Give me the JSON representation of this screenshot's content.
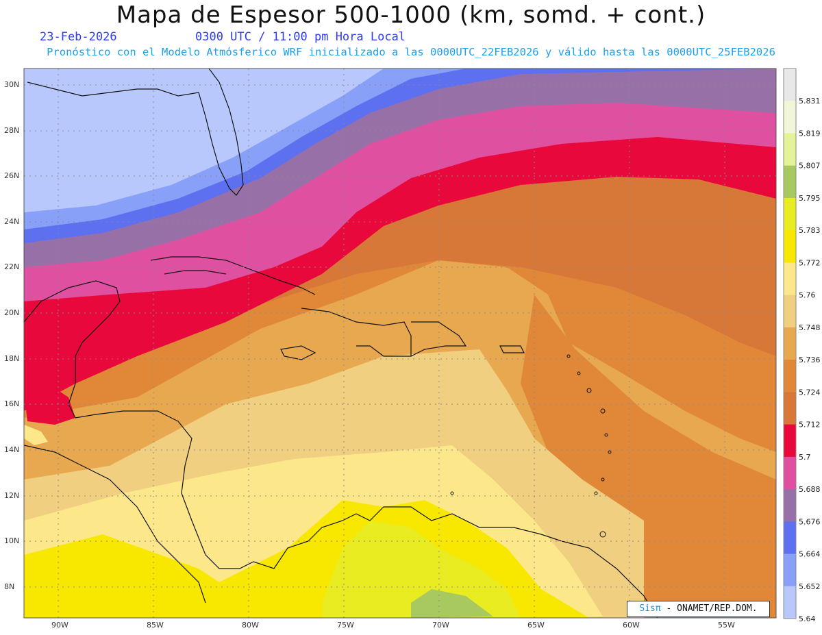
{
  "title": "Mapa de Espesor 500-1000 (km, somd. + cont.)",
  "subtitle": {
    "date": "23-Feb-2026",
    "time": "0300 UTC / 11:00 pm Hora Local",
    "model_line": "Pronóstico con el Modelo Atmósferico WRF inicializado a las 0000UTC_22FEB2026 y válido hasta las  0000UTC_25FEB2026"
  },
  "latitude_labels": [
    "30N",
    "28N",
    "26N",
    "24N",
    "22N",
    "20N",
    "18N",
    "16N",
    "14N",
    "12N",
    "10N",
    "8N"
  ],
  "longitude_labels": [
    "90W",
    "85W",
    "80W",
    "75W",
    "70W",
    "65W",
    "60W",
    "55W"
  ],
  "colorbar": {
    "values": [
      "5.831",
      "5.819",
      "5.807",
      "5.795",
      "5.783",
      "5.772",
      "5.76",
      "5.748",
      "5.736",
      "5.724",
      "5.712",
      "5.7",
      "5.688",
      "5.676",
      "5.664",
      "5.652",
      "5.64"
    ],
    "colors": [
      "#e8e8e8",
      "#f2f6d8",
      "#e4f29a",
      "#a8c860",
      "#e8ec20",
      "#f8e800",
      "#fce88a",
      "#f0d080",
      "#e8a850",
      "#e08838",
      "#d87838",
      "#e8083c",
      "#e050a0",
      "#9870a8",
      "#5c70f0",
      "#88a0f8",
      "#b8c8fc"
    ]
  },
  "credit": {
    "brand": "Sisπ",
    "text": " - ONAMET/REP.DOM."
  }
}
